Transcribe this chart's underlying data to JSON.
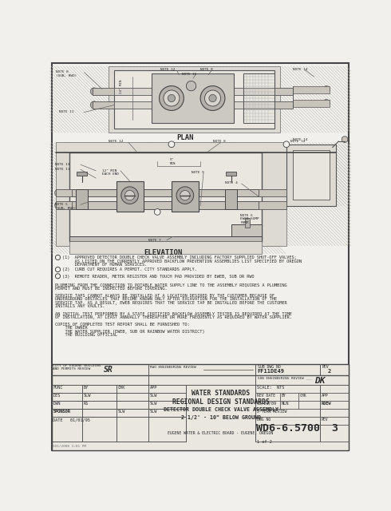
{
  "bg_color": "#f2f0ec",
  "line_color": "#555555",
  "text_color": "#2a2a2a",
  "title": "DETECTOR DOUBLE CHECK VALVE ASSEMBLY",
  "title2": "2 1/2' - 10\" BELOW GROUND",
  "header1": "WATER STANDARDS",
  "header2": "REGIONAL DESIGN STANDARDS",
  "footer": "EUGENE WATER & ELECTRIC BOARD - EUGENE, OREGON",
  "dwg_no": "WD6-6.5700",
  "rev": "3",
  "rev_pages": "1 of 2",
  "sub_dwg_no": "FF11DE49",
  "sub_rev": "2",
  "scale": "NTS",
  "rev_date": "05/21/09",
  "rev_by": "NLN",
  "rev_app": "RDEW",
  "date": "01/01/95",
  "plan_label": "PLAN",
  "elev_label": "ELEVATION",
  "city_review_line1": "CITY OF EUGENE BUILDING",
  "city_review_line2": "AND PERMITS REVIEW",
  "city_sig": "SR",
  "rwo_review": "RWO ENGINEERING REVIEW",
  "sub_eng_review": "SUB ENGINEERING REVIEW",
  "sub_eng_sig": "DK",
  "five_year": "5 YEAR REVIEW",
  "note1a": "(1)  APPROVED DETECTOR DOUBLE CHECK VALVE ASSEMBLY INCLUDING FACTORY SUPPLIED SHUT-OFF VALVES;",
  "note1b": "     AS LISTED ON THE CURRENTLY APPROVED BACKFLOW PREVENTION ASSEMBLIES LIST SPECIFIED BY OREGON",
  "note1c": "     DEPARTMENT OF HUMAN SERVICES.",
  "note2": "(2)  CURB CUT REQUIRES A PERMIT. CITY STANDARDS APPLY.",
  "note3": "(3)  REMOTE READER, METER REGISTER AND TOUCH PAD PROVIDED BY EWEB, SUB OR RWO",
  "para1a": "PLUMBING FROM THE CONNECTION TO POTABLE WATER SUPPLY LINE TO THE ASSEMBLY REQUIRES A PLUMBING",
  "para1b": "PERMIT AND MUST BE INSPECTED BEFORE COVERING.",
  "para2a": "SERVICE TAPS CANNOT ALWAYS BE INSTALLED AT A LOCATION DESIRED BY THE CUSTOMER BECAUSE OF",
  "para2b": "UNDERGROUND OBSTACLES THAT BECOME KNOWN ONLY AFTER EXCAVATION FOR THE INSTALLATION OF THE",
  "para2c": "SERVICE TAP. AS A RESULT, EWEB REQUIRES THAT THE SERVICE TAP BE INSTALLED BEFORE THE CUSTOMER",
  "para2d": "INSTALLS ANY VAULTS.",
  "para3a": "AN INITIAL TEST PERFORMED BY A STATE CERTIFIED BACKFLOW ASSEMBLY TESTER IS REQUIRED AT THE TIME",
  "para3b": "OF INSTALLATION, AT LEAST ANNUALLY THEREAFTER OR MORE FREQUENTLY AS REQUIRED BY WATER SUPPLIER.",
  "para4a": "COPIES OF COMPLETED TEST REPORT SHALL BE FURNISHED TO:",
  "para4b": "    THE OWNER",
  "para4c": "    THE WATER SUPPLIER (EWEB, SUB OR RAINBOW WATER DISTRICT)",
  "para4d": "    THE BUILDING OFFICIAL",
  "bottom_text": "S01/2008 1:01 PM",
  "func_rows": [
    [
      "FUNC",
      "BY",
      "CHK",
      "APP"
    ],
    [
      "DES",
      "SLW",
      "",
      "SLW"
    ],
    [
      "DWN",
      "RS",
      "",
      "SLW"
    ],
    [
      "SPONSOR",
      "",
      "SLW",
      ""
    ]
  ]
}
